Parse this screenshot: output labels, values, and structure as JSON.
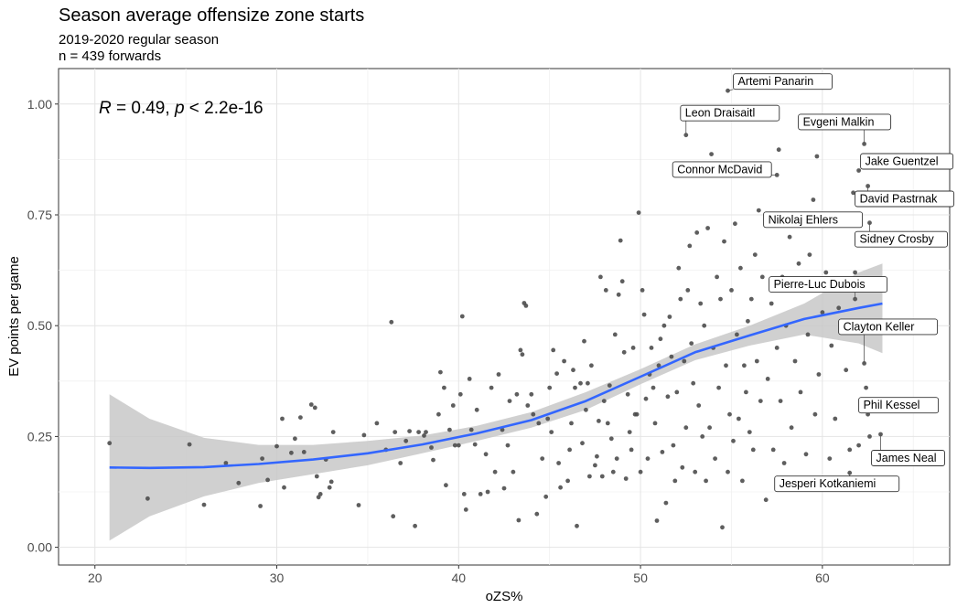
{
  "chart_data": {
    "type": "scatter",
    "title": "Season average offensize zone starts",
    "subtitle_lines": [
      "2019-2020 regular season",
      "n = 439 forwards"
    ],
    "xlabel": "oZS%",
    "ylabel": "EV points per game",
    "xlim": [
      18,
      67
    ],
    "ylim": [
      -0.04,
      1.08
    ],
    "x_ticks": [
      20,
      30,
      40,
      50,
      60
    ],
    "y_ticks": [
      0.0,
      0.25,
      0.5,
      0.75,
      1.0
    ],
    "y_tick_labels": [
      "0.00",
      "0.25",
      "0.50",
      "0.75",
      "1.00"
    ],
    "grid": true,
    "annotation": {
      "r_symbol": "R",
      "r_text": " = 0.49, ",
      "p_symbol": "p",
      "p_text": " < 2.2e-16"
    },
    "points_colour": "#4d4d4d",
    "smooth_line_colour": "#3366ff",
    "ribbon_colour": "#c8c8c8",
    "smooth": {
      "x": [
        20.8,
        23,
        26,
        29,
        32,
        35,
        38,
        41,
        44,
        47,
        50,
        53,
        56,
        59,
        62,
        63.3
      ],
      "y": [
        0.18,
        0.179,
        0.181,
        0.188,
        0.198,
        0.212,
        0.232,
        0.257,
        0.287,
        0.33,
        0.385,
        0.44,
        0.478,
        0.515,
        0.54,
        0.55
      ],
      "lower": [
        0.015,
        0.07,
        0.115,
        0.145,
        0.165,
        0.185,
        0.212,
        0.24,
        0.27,
        0.31,
        0.368,
        0.422,
        0.455,
        0.48,
        0.46,
        0.438
      ],
      "upper": [
        0.345,
        0.29,
        0.247,
        0.231,
        0.231,
        0.24,
        0.252,
        0.274,
        0.305,
        0.35,
        0.402,
        0.458,
        0.5,
        0.55,
        0.62,
        0.64
      ]
    },
    "labeled_players": [
      {
        "name": "Artemi Panarin",
        "x": 54.8,
        "y": 1.03
      },
      {
        "name": "Leon Draisaitl",
        "x": 52.5,
        "y": 0.93
      },
      {
        "name": "Evgeni Malkin",
        "x": 62.3,
        "y": 0.91
      },
      {
        "name": "Jake Guentzel",
        "x": 62.0,
        "y": 0.85
      },
      {
        "name": "Connor McDavid",
        "x": 57.5,
        "y": 0.84
      },
      {
        "name": "David Pastrnak",
        "x": 62.5,
        "y": 0.815
      },
      {
        "name": "Nikolaj Ehlers",
        "x": 61.8,
        "y": 0.735
      },
      {
        "name": "Sidney Crosby",
        "x": 62.6,
        "y": 0.732
      },
      {
        "name": "Pierre-Luc Dubois",
        "x": 61.8,
        "y": 0.56
      },
      {
        "name": "Clayton Keller",
        "x": 62.3,
        "y": 0.415
      },
      {
        "name": "Phil Kessel",
        "x": 62.5,
        "y": 0.3
      },
      {
        "name": "James Neal",
        "x": 63.2,
        "y": 0.255
      },
      {
        "name": "Jesperi Kotkaniemi",
        "x": 61.5,
        "y": 0.168
      }
    ],
    "points": [
      [
        20.8,
        0.235
      ],
      [
        22.9,
        0.11
      ],
      [
        25.2,
        0.232
      ],
      [
        26.0,
        0.096
      ],
      [
        27.2,
        0.19
      ],
      [
        27.9,
        0.145
      ],
      [
        29.1,
        0.093
      ],
      [
        29.2,
        0.2
      ],
      [
        29.5,
        0.152
      ],
      [
        30.0,
        0.228
      ],
      [
        30.4,
        0.135
      ],
      [
        30.3,
        0.29
      ],
      [
        30.8,
        0.213
      ],
      [
        31.0,
        0.245
      ],
      [
        31.3,
        0.293
      ],
      [
        31.5,
        0.215
      ],
      [
        31.9,
        0.322
      ],
      [
        32.1,
        0.315
      ],
      [
        32.2,
        0.16
      ],
      [
        32.3,
        0.113
      ],
      [
        32.4,
        0.12
      ],
      [
        32.7,
        0.198
      ],
      [
        32.9,
        0.135
      ],
      [
        33.0,
        0.148
      ],
      [
        33.1,
        0.26
      ],
      [
        34.5,
        0.095
      ],
      [
        34.8,
        0.253
      ],
      [
        35.5,
        0.28
      ],
      [
        36.0,
        0.22
      ],
      [
        36.3,
        0.508
      ],
      [
        36.4,
        0.07
      ],
      [
        36.5,
        0.26
      ],
      [
        36.8,
        0.19
      ],
      [
        37.1,
        0.24
      ],
      [
        37.3,
        0.262
      ],
      [
        37.6,
        0.048
      ],
      [
        37.8,
        0.26
      ],
      [
        38.1,
        0.252
      ],
      [
        38.2,
        0.26
      ],
      [
        38.5,
        0.225
      ],
      [
        38.6,
        0.197
      ],
      [
        38.9,
        0.3
      ],
      [
        39.0,
        0.395
      ],
      [
        39.2,
        0.36
      ],
      [
        39.3,
        0.14
      ],
      [
        39.5,
        0.265
      ],
      [
        39.7,
        0.32
      ],
      [
        39.8,
        0.23
      ],
      [
        40.0,
        0.23
      ],
      [
        40.1,
        0.345
      ],
      [
        40.2,
        0.521
      ],
      [
        40.3,
        0.12
      ],
      [
        40.4,
        0.085
      ],
      [
        40.6,
        0.38
      ],
      [
        40.7,
        0.265
      ],
      [
        40.9,
        0.232
      ],
      [
        41.0,
        0.31
      ],
      [
        41.2,
        0.12
      ],
      [
        41.5,
        0.21
      ],
      [
        41.6,
        0.125
      ],
      [
        41.8,
        0.36
      ],
      [
        42.0,
        0.17
      ],
      [
        42.2,
        0.39
      ],
      [
        42.4,
        0.265
      ],
      [
        42.5,
        0.133
      ],
      [
        42.7,
        0.23
      ],
      [
        42.8,
        0.33
      ],
      [
        43.0,
        0.17
      ],
      [
        43.2,
        0.345
      ],
      [
        43.3,
        0.061
      ],
      [
        43.4,
        0.445
      ],
      [
        43.5,
        0.435
      ],
      [
        43.6,
        0.551
      ],
      [
        43.7,
        0.545
      ],
      [
        43.8,
        0.32
      ],
      [
        44.0,
        0.345
      ],
      [
        44.1,
        0.3
      ],
      [
        44.3,
        0.075
      ],
      [
        44.4,
        0.28
      ],
      [
        44.6,
        0.2
      ],
      [
        44.8,
        0.114
      ],
      [
        44.9,
        0.29
      ],
      [
        45.0,
        0.36
      ],
      [
        45.1,
        0.26
      ],
      [
        45.2,
        0.445
      ],
      [
        45.4,
        0.392
      ],
      [
        45.5,
        0.19
      ],
      [
        45.6,
        0.135
      ],
      [
        45.8,
        0.42
      ],
      [
        46.0,
        0.15
      ],
      [
        46.1,
        0.22
      ],
      [
        46.2,
        0.28
      ],
      [
        46.3,
        0.4
      ],
      [
        46.4,
        0.36
      ],
      [
        46.5,
        0.048
      ],
      [
        46.7,
        0.37
      ],
      [
        46.8,
        0.235
      ],
      [
        46.9,
        0.465
      ],
      [
        47.0,
        0.31
      ],
      [
        47.1,
        0.37
      ],
      [
        47.2,
        0.16
      ],
      [
        47.3,
        0.41
      ],
      [
        47.5,
        0.185
      ],
      [
        47.6,
        0.205
      ],
      [
        47.7,
        0.285
      ],
      [
        47.8,
        0.61
      ],
      [
        47.9,
        0.16
      ],
      [
        48.0,
        0.33
      ],
      [
        48.1,
        0.58
      ],
      [
        48.2,
        0.28
      ],
      [
        48.3,
        0.365
      ],
      [
        48.4,
        0.245
      ],
      [
        48.5,
        0.17
      ],
      [
        48.6,
        0.48
      ],
      [
        48.7,
        0.2
      ],
      [
        48.8,
        0.57
      ],
      [
        48.9,
        0.692
      ],
      [
        49.0,
        0.6
      ],
      [
        49.1,
        0.44
      ],
      [
        49.2,
        0.155
      ],
      [
        49.3,
        0.345
      ],
      [
        49.4,
        0.26
      ],
      [
        49.5,
        0.22
      ],
      [
        49.6,
        0.45
      ],
      [
        49.7,
        0.3
      ],
      [
        49.8,
        0.3
      ],
      [
        49.9,
        0.755
      ],
      [
        50.0,
        0.17
      ],
      [
        50.1,
        0.58
      ],
      [
        50.2,
        0.525
      ],
      [
        50.3,
        0.335
      ],
      [
        50.4,
        0.2
      ],
      [
        50.5,
        0.39
      ],
      [
        50.6,
        0.45
      ],
      [
        50.7,
        0.36
      ],
      [
        50.8,
        0.28
      ],
      [
        50.9,
        0.06
      ],
      [
        51.0,
        0.41
      ],
      [
        51.1,
        0.47
      ],
      [
        51.2,
        0.215
      ],
      [
        51.3,
        0.5
      ],
      [
        51.4,
        0.1
      ],
      [
        51.5,
        0.34
      ],
      [
        51.6,
        0.52
      ],
      [
        51.7,
        0.43
      ],
      [
        51.8,
        0.23
      ],
      [
        51.9,
        0.15
      ],
      [
        52.0,
        0.35
      ],
      [
        52.1,
        0.63
      ],
      [
        52.2,
        0.56
      ],
      [
        52.3,
        0.18
      ],
      [
        52.4,
        0.42
      ],
      [
        52.5,
        0.27
      ],
      [
        52.6,
        0.58
      ],
      [
        52.7,
        0.68
      ],
      [
        52.8,
        0.46
      ],
      [
        52.9,
        0.37
      ],
      [
        53.0,
        0.17
      ],
      [
        53.1,
        0.71
      ],
      [
        53.2,
        0.32
      ],
      [
        53.3,
        0.55
      ],
      [
        53.4,
        0.25
      ],
      [
        53.5,
        0.5
      ],
      [
        53.6,
        0.15
      ],
      [
        53.7,
        0.72
      ],
      [
        53.8,
        0.27
      ],
      [
        53.9,
        0.887
      ],
      [
        54.0,
        0.45
      ],
      [
        54.1,
        0.2
      ],
      [
        54.2,
        0.61
      ],
      [
        54.3,
        0.36
      ],
      [
        54.4,
        0.56
      ],
      [
        54.5,
        0.045
      ],
      [
        54.6,
        0.69
      ],
      [
        54.7,
        0.41
      ],
      [
        54.8,
        0.17
      ],
      [
        54.9,
        0.3
      ],
      [
        55.0,
        0.58
      ],
      [
        55.1,
        0.24
      ],
      [
        55.2,
        0.73
      ],
      [
        55.3,
        0.48
      ],
      [
        55.4,
        0.29
      ],
      [
        55.5,
        0.63
      ],
      [
        55.6,
        0.15
      ],
      [
        55.7,
        0.41
      ],
      [
        55.8,
        0.35
      ],
      [
        55.9,
        0.51
      ],
      [
        56.0,
        0.26
      ],
      [
        56.1,
        0.56
      ],
      [
        56.2,
        0.22
      ],
      [
        56.3,
        0.66
      ],
      [
        56.4,
        0.42
      ],
      [
        56.5,
        0.76
      ],
      [
        56.6,
        0.33
      ],
      [
        56.7,
        0.61
      ],
      [
        56.9,
        0.107
      ],
      [
        57.0,
        0.38
      ],
      [
        57.1,
        0.84
      ],
      [
        57.2,
        0.55
      ],
      [
        57.3,
        0.22
      ],
      [
        57.4,
        0.735
      ],
      [
        57.5,
        0.45
      ],
      [
        57.6,
        0.897
      ],
      [
        57.7,
        0.33
      ],
      [
        57.8,
        0.61
      ],
      [
        57.9,
        0.19
      ],
      [
        58.0,
        0.5
      ],
      [
        58.2,
        0.7
      ],
      [
        58.3,
        0.27
      ],
      [
        58.5,
        0.42
      ],
      [
        58.7,
        0.64
      ],
      [
        58.8,
        0.35
      ],
      [
        59.0,
        0.73
      ],
      [
        59.1,
        0.21
      ],
      [
        59.2,
        0.48
      ],
      [
        59.3,
        0.66
      ],
      [
        59.5,
        0.784
      ],
      [
        59.6,
        0.3
      ],
      [
        59.7,
        0.882
      ],
      [
        59.8,
        0.39
      ],
      [
        60.0,
        0.53
      ],
      [
        60.2,
        0.62
      ],
      [
        60.4,
        0.2
      ],
      [
        60.5,
        0.455
      ],
      [
        60.7,
        0.29
      ],
      [
        60.9,
        0.54
      ],
      [
        61.1,
        0.58
      ],
      [
        61.3,
        0.4
      ],
      [
        61.5,
        0.22
      ],
      [
        61.7,
        0.8
      ],
      [
        61.8,
        0.62
      ],
      [
        62.0,
        0.23
      ],
      [
        62.2,
        0.49
      ],
      [
        62.4,
        0.36
      ],
      [
        62.6,
        0.25
      ]
    ]
  }
}
